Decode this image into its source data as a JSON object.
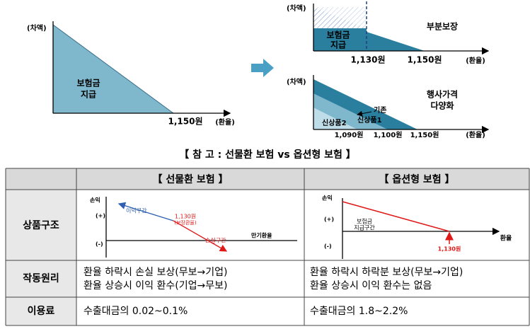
{
  "diagram_left": {
    "y_label": "(차액)",
    "area_label": [
      "보험금",
      "지급"
    ],
    "strike": "1,150원",
    "x_label": "(환율)"
  },
  "diagram_partial": {
    "y_label": "(차액)",
    "area_label": [
      "보험금",
      "지급"
    ],
    "ticks": [
      "1,130원",
      "1,150원"
    ],
    "x_label": "(환율)",
    "caption": "부분보장"
  },
  "diagram_multi": {
    "y_label": "(차액)",
    "caption": [
      "행사가격",
      "다양화"
    ],
    "layers": [
      "기존",
      "신상품1",
      "신상품2"
    ],
    "ticks": [
      "1,090원",
      "1,100원",
      "1,150원"
    ],
    "x_label": "(환율)"
  },
  "title": "【 참 고 : 선물환 보험 vs 옵션형 보험 】",
  "table": {
    "header": [
      "【 선물환 보험 】",
      "【 옵션형 보험 】"
    ],
    "rows": [
      {
        "label": "상품구조",
        "forward_chart": {
          "y_label": "손익",
          "plus": "(+)",
          "minus": "(-)",
          "gain": "이익구간",
          "strike": [
            "1,130원",
            "(보장환율)"
          ],
          "loss": "손실구간",
          "x_label": "만기환율"
        },
        "option_chart": {
          "y_label": "손익",
          "plus": "(+)",
          "minus": "(-)",
          "area": [
            "보험금",
            "지급구간"
          ],
          "strike": "1,130원",
          "x_label": "환율"
        }
      },
      {
        "label": "작동원리",
        "forward": [
          "환율 하락시 손실 보상(무보→기업)",
          "환율 상승시 이익 환수(기업→무보)"
        ],
        "option": [
          "환율 하락시 하락분 보상(무보→기업)",
          "환율 상승시 이익 환수는 없음"
        ]
      },
      {
        "label": "이용료",
        "forward": "수출대금의 0.02~0.1%",
        "option": "수출대금의 1.8~2.2%"
      }
    ]
  }
}
